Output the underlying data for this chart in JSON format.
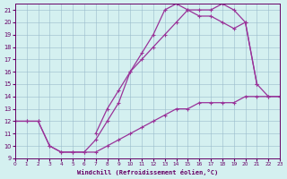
{
  "xlabel": "Windchill (Refroidissement éolien,°C)",
  "bg_color": "#d4f0f0",
  "line_color": "#993399",
  "xlim": [
    0,
    23
  ],
  "ylim": [
    9,
    21.5
  ],
  "xticks": [
    0,
    1,
    2,
    3,
    4,
    5,
    6,
    7,
    8,
    9,
    10,
    11,
    12,
    13,
    14,
    15,
    16,
    17,
    18,
    19,
    20,
    21,
    22,
    23
  ],
  "yticks": [
    9,
    10,
    11,
    12,
    13,
    14,
    15,
    16,
    17,
    18,
    19,
    20,
    21
  ],
  "lineA_x": [
    0,
    1,
    2,
    3,
    4,
    5,
    6,
    7,
    8,
    9,
    10,
    11,
    12,
    13,
    14,
    15,
    16,
    17,
    18,
    19,
    20,
    21,
    22,
    23
  ],
  "lineA_y": [
    12,
    12,
    12,
    10,
    9.5,
    9.5,
    9.5,
    9.5,
    10,
    10.5,
    11,
    11.5,
    12,
    12.5,
    13,
    13,
    13.5,
    13.5,
    13.5,
    13.5,
    14,
    14,
    14,
    14
  ],
  "lineB_x": [
    0,
    1,
    2,
    3,
    4,
    5,
    6,
    7,
    8,
    9,
    10,
    11,
    12,
    13,
    14,
    15,
    16,
    17,
    18,
    19,
    20,
    21
  ],
  "lineB_y": [
    12,
    12,
    12,
    10,
    9.5,
    9.5,
    9.5,
    10.5,
    12,
    13.5,
    16,
    17.5,
    19,
    21,
    21.5,
    21,
    20.5,
    20.5,
    20,
    19.5,
    20,
    15
  ],
  "lineC_x": [
    7,
    8,
    9,
    10,
    11,
    12,
    13,
    14,
    15,
    16,
    17,
    18,
    19,
    20,
    21,
    22,
    23
  ],
  "lineC_y": [
    11,
    13,
    14.5,
    16,
    17,
    18,
    19,
    20,
    21,
    21,
    21,
    21.5,
    21,
    20,
    15,
    14,
    14
  ],
  "markersize": 2.5,
  "linewidth": 0.9
}
